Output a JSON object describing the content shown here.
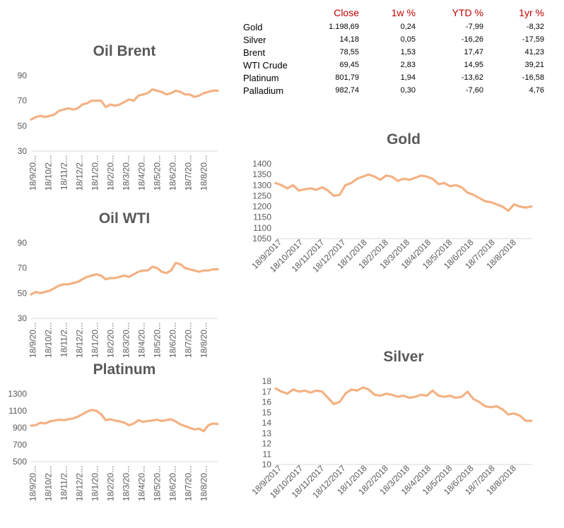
{
  "table": {
    "headers": [
      "",
      "Close",
      "1w %",
      "YTD %",
      "1yr %"
    ],
    "rows": [
      [
        "Gold",
        "1.198,69",
        "0,24",
        "-7,99",
        "-8,32"
      ],
      [
        "Silver",
        "14,18",
        "0,05",
        "-16,26",
        "-17,59"
      ],
      [
        "Brent",
        "78,55",
        "1,53",
        "17,47",
        "41,23"
      ],
      [
        "WTI Crude",
        "69,45",
        "2,83",
        "14,95",
        "39,21"
      ],
      [
        "Platinum",
        "801,79",
        "1,94",
        "-13,62",
        "-16,58"
      ],
      [
        "Palladium",
        "982,74",
        "0,30",
        "-7,60",
        "4,76"
      ]
    ]
  },
  "colors": {
    "series": "#f4b183",
    "header_text": "#c00000",
    "axis_text": "#595959",
    "axis_line": "#d9d9d9"
  },
  "chart_data": [
    {
      "id": "brent",
      "type": "line",
      "title": "Oil Brent",
      "ylim": [
        30,
        90
      ],
      "yticks": [
        "90",
        "70",
        "50",
        "30"
      ],
      "xticks": [
        "18/9/20...",
        "18/10/2...",
        "18/11/2...",
        "18/12/2...",
        "18/1/20...",
        "18/2/20...",
        "18/3/20...",
        "18/4/20...",
        "18/5/20...",
        "18/6/20...",
        "18/7/20...",
        "18/8/20..."
      ],
      "values": [
        55,
        57,
        58,
        57,
        58,
        59,
        62,
        63,
        64,
        63,
        64,
        67,
        68,
        70,
        70,
        70,
        65,
        67,
        66,
        67,
        69,
        71,
        70,
        74,
        75,
        76,
        79,
        78,
        77,
        75,
        76,
        78,
        77,
        75,
        75,
        73,
        74,
        76,
        77,
        78,
        78
      ],
      "grid": false
    },
    {
      "id": "wti",
      "type": "line",
      "title": "Oil WTI",
      "ylim": [
        30,
        90
      ],
      "yticks": [
        "90",
        "70",
        "50",
        "30"
      ],
      "xticks": [
        "18/9/20...",
        "18/10/2...",
        "18/11/2...",
        "18/12/2...",
        "18/1/20...",
        "18/2/20...",
        "18/3/20...",
        "18/4/20...",
        "18/5/20...",
        "18/6/20...",
        "18/7/20...",
        "18/8/20..."
      ],
      "values": [
        49,
        51,
        50,
        51,
        52,
        54,
        56,
        57,
        57,
        58,
        59,
        61,
        63,
        64,
        65,
        64,
        61,
        62,
        62,
        63,
        64,
        63,
        65,
        67,
        68,
        68,
        71,
        70,
        67,
        66,
        68,
        74,
        73,
        70,
        69,
        68,
        67,
        68,
        68,
        69,
        69
      ],
      "grid": false
    },
    {
      "id": "platinum",
      "type": "line",
      "title": "Platinum",
      "ylim": [
        500,
        1300
      ],
      "yticks": [
        "1300",
        "1100",
        "900",
        "700",
        "500"
      ],
      "xticks": [
        "18/9/20...",
        "18/10/2...",
        "18/11/2...",
        "18/12/2...",
        "18/1/20...",
        "18/2/20...",
        "18/3/20...",
        "18/4/20...",
        "18/5/20...",
        "18/6/20...",
        "18/7/20...",
        "18/8/20..."
      ],
      "values": [
        925,
        930,
        960,
        950,
        975,
        985,
        995,
        990,
        1000,
        1010,
        1030,
        1060,
        1090,
        1110,
        1100,
        1060,
        990,
        1000,
        985,
        975,
        960,
        930,
        950,
        990,
        970,
        980,
        985,
        995,
        980,
        990,
        1000,
        975,
        940,
        920,
        900,
        880,
        890,
        860,
        930,
        950,
        945
      ],
      "grid": false
    },
    {
      "id": "gold",
      "type": "line",
      "title": "Gold",
      "ylim": [
        1050,
        1400
      ],
      "yticks": [
        "1400",
        "1350",
        "1300",
        "1250",
        "1200",
        "1150",
        "1100",
        "1050"
      ],
      "xticks": [
        "18/9/2017",
        "18/10/2017",
        "18/11/2017",
        "18/12/2017",
        "18/1/2018",
        "18/2/2018",
        "18/3/2018",
        "18/4/2018",
        "18/5/2018",
        "18/6/2018",
        "18/7/2018",
        "18/8/2018"
      ],
      "values": [
        1310,
        1300,
        1285,
        1300,
        1275,
        1280,
        1285,
        1278,
        1290,
        1275,
        1250,
        1255,
        1300,
        1310,
        1330,
        1340,
        1350,
        1340,
        1325,
        1345,
        1340,
        1320,
        1330,
        1325,
        1335,
        1345,
        1340,
        1330,
        1305,
        1310,
        1295,
        1300,
        1290,
        1265,
        1255,
        1240,
        1225,
        1220,
        1210,
        1200,
        1180,
        1210,
        1200,
        1195,
        1200
      ],
      "grid": false
    },
    {
      "id": "silver",
      "type": "line",
      "title": "Silver",
      "ylim": [
        10,
        18
      ],
      "yticks": [
        "18",
        "17",
        "16",
        "15",
        "14",
        "13",
        "12",
        "11",
        "10"
      ],
      "xticks": [
        "18/9/2017",
        "18/10/2017",
        "18/11/2017",
        "18/12/2017",
        "18/1/2018",
        "18/2/2018",
        "18/3/2018",
        "18/4/2018",
        "18/5/2018",
        "18/6/2018",
        "18/7/2018",
        "18/8/2018"
      ],
      "values": [
        17.3,
        17.0,
        16.8,
        17.2,
        17.0,
        17.1,
        16.9,
        17.1,
        17.0,
        16.4,
        15.8,
        16.0,
        16.8,
        17.2,
        17.1,
        17.4,
        17.2,
        16.7,
        16.6,
        16.8,
        16.7,
        16.5,
        16.6,
        16.4,
        16.5,
        16.7,
        16.6,
        17.1,
        16.6,
        16.5,
        16.6,
        16.4,
        16.5,
        17.0,
        16.3,
        16.0,
        15.6,
        15.5,
        15.6,
        15.3,
        14.8,
        14.9,
        14.7,
        14.2,
        14.2
      ],
      "grid": false
    }
  ]
}
